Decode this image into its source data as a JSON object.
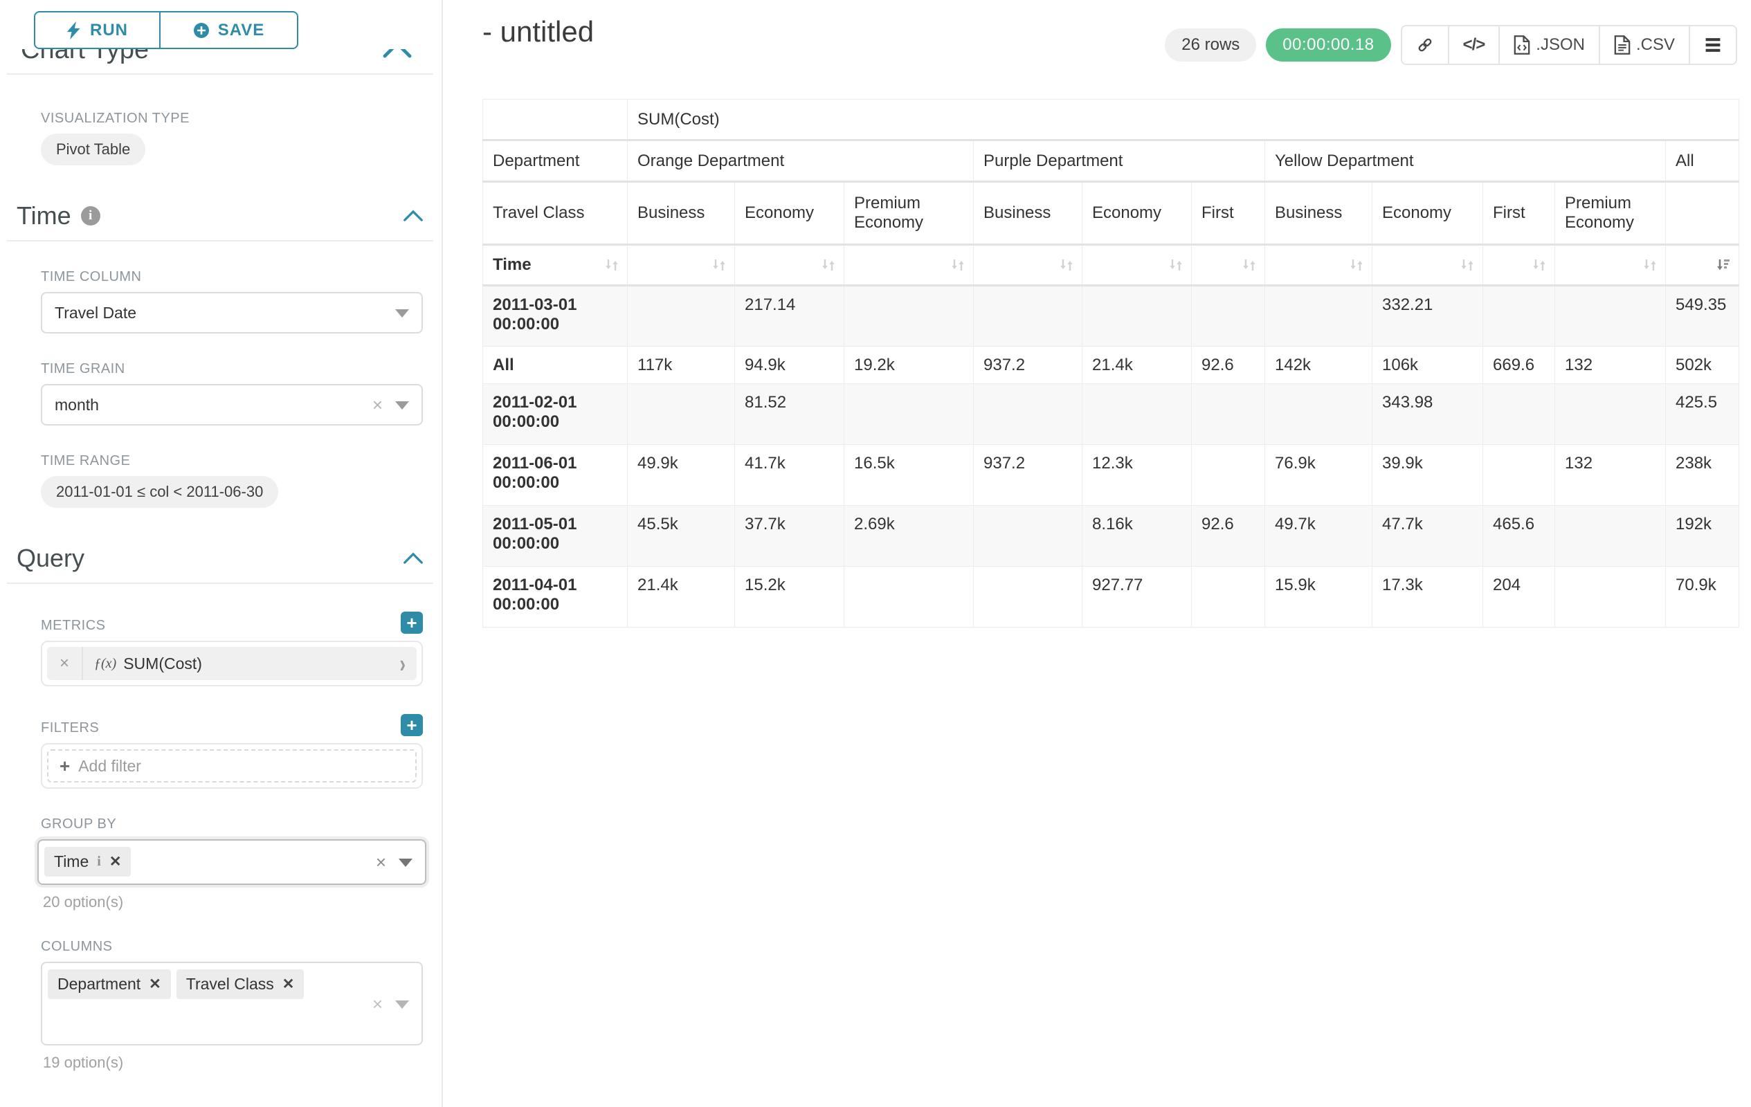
{
  "colors": {
    "primary": "#2E8CA8",
    "success": "#5AC189"
  },
  "sidebar": {
    "run_label": "RUN",
    "save_label": "SAVE",
    "clipped_heading": "Chart Type",
    "viz_type_label": "VISUALIZATION TYPE",
    "viz_type_value": "Pivot Table",
    "time_section": {
      "title": "Time",
      "time_column_label": "TIME COLUMN",
      "time_column_value": "Travel Date",
      "time_grain_label": "TIME GRAIN",
      "time_grain_value": "month",
      "time_range_label": "TIME RANGE",
      "time_range_value": "2011-01-01 ≤ col < 2011-06-30"
    },
    "query_section": {
      "title": "Query",
      "metrics_label": "METRICS",
      "metric_prefix": "ƒ(x)",
      "metric_value": "SUM(Cost)",
      "filters_label": "FILTERS",
      "add_filter_label": "Add filter",
      "group_by_label": "GROUP BY",
      "group_by_chips": [
        "Time"
      ],
      "group_by_hint": "20 option(s)",
      "columns_label": "COLUMNS",
      "columns_chips": [
        "Department",
        "Travel Class"
      ],
      "columns_hint": "19 option(s)"
    }
  },
  "header": {
    "title": "- untitled",
    "row_count": "26 rows",
    "timer": "00:00:00.18",
    "json_label": ".JSON",
    "csv_label": ".CSV"
  },
  "pivot_table": {
    "metric_header": "SUM(Cost)",
    "department_label": "Department",
    "travel_class_label": "Travel Class",
    "time_label": "Time",
    "groups": [
      {
        "label": "Orange Department",
        "cols": [
          "Business",
          "Economy",
          "Premium Economy"
        ]
      },
      {
        "label": "Purple Department",
        "cols": [
          "Business",
          "Economy",
          "First"
        ]
      },
      {
        "label": "Yellow Department",
        "cols": [
          "Business",
          "Economy",
          "First",
          "Premium Economy"
        ]
      },
      {
        "label": "All",
        "cols": [
          ""
        ]
      }
    ],
    "rows": [
      {
        "label": "2011-03-01 00:00:00",
        "values": [
          "",
          "217.14",
          "",
          "",
          "",
          "",
          "",
          "332.21",
          "",
          "",
          "549.35"
        ]
      },
      {
        "label": "All",
        "values": [
          "117k",
          "94.9k",
          "19.2k",
          "937.2",
          "21.4k",
          "92.6",
          "142k",
          "106k",
          "669.6",
          "132",
          "502k"
        ]
      },
      {
        "label": "2011-02-01 00:00:00",
        "values": [
          "",
          "81.52",
          "",
          "",
          "",
          "",
          "",
          "343.98",
          "",
          "",
          "425.5"
        ]
      },
      {
        "label": "2011-06-01 00:00:00",
        "values": [
          "49.9k",
          "41.7k",
          "16.5k",
          "937.2",
          "12.3k",
          "",
          "76.9k",
          "39.9k",
          "",
          "132",
          "238k"
        ]
      },
      {
        "label": "2011-05-01 00:00:00",
        "values": [
          "45.5k",
          "37.7k",
          "2.69k",
          "",
          "8.16k",
          "92.6",
          "49.7k",
          "47.7k",
          "465.6",
          "",
          "192k"
        ]
      },
      {
        "label": "2011-04-01 00:00:00",
        "values": [
          "21.4k",
          "15.2k",
          "",
          "",
          "927.77",
          "",
          "15.9k",
          "17.3k",
          "204",
          "",
          "70.9k"
        ]
      }
    ]
  }
}
